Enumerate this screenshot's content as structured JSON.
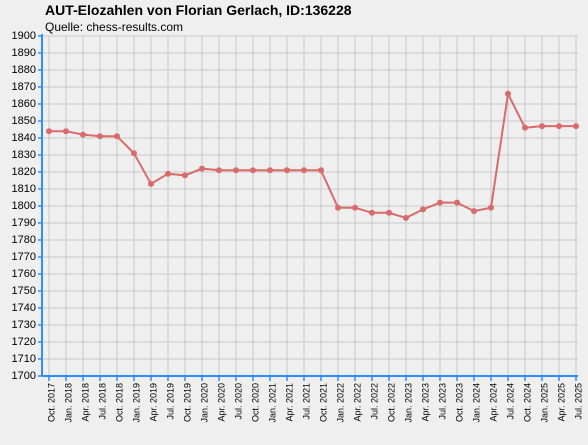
{
  "title": "AUT-Elozahlen von Florian Gerlach, ID:136228",
  "subtitle": "Quelle: chess-results.com",
  "chart_data": {
    "type": "line",
    "title": "AUT-Elozahlen von Florian Gerlach, ID:136228",
    "subtitle": "Quelle: chess-results.com",
    "xlabel": "",
    "ylabel": "",
    "ylim": [
      1700,
      1900
    ],
    "y_tick_step": 10,
    "grid": true,
    "legend": "none",
    "line_color": "#d96b6b",
    "categories": [
      "Oct. 2017",
      "Jan. 2018",
      "Apr. 2018",
      "Jul. 2018",
      "Oct. 2018",
      "Jan. 2019",
      "Apr. 2019",
      "Jul. 2019",
      "Oct. 2019",
      "Jan. 2020",
      "Apr. 2020",
      "Jul. 2020",
      "Oct. 2020",
      "Jan. 2021",
      "Apr. 2021",
      "Jul. 2021",
      "Oct. 2021",
      "Jan. 2022",
      "Apr. 2022",
      "Jul. 2022",
      "Oct. 2022",
      "Jan. 2023",
      "Apr. 2023",
      "Jul. 2023",
      "Oct. 2023",
      "Jan. 2024",
      "Apr. 2024",
      "Jul. 2024",
      "Oct. 2024",
      "Jan. 2025",
      "Apr. 2025",
      "Jul. 2025"
    ],
    "series": [
      {
        "values": [
          1844,
          1844,
          1842,
          1841,
          1841,
          1831,
          1813,
          1819,
          1818,
          1822,
          1821,
          1821,
          1821,
          1821,
          1821,
          1821,
          1821,
          1799,
          1799,
          1796,
          1796,
          1793,
          1798,
          1802,
          1802,
          1797,
          1799,
          1866,
          1846,
          1847,
          1847,
          1847
        ]
      }
    ]
  }
}
